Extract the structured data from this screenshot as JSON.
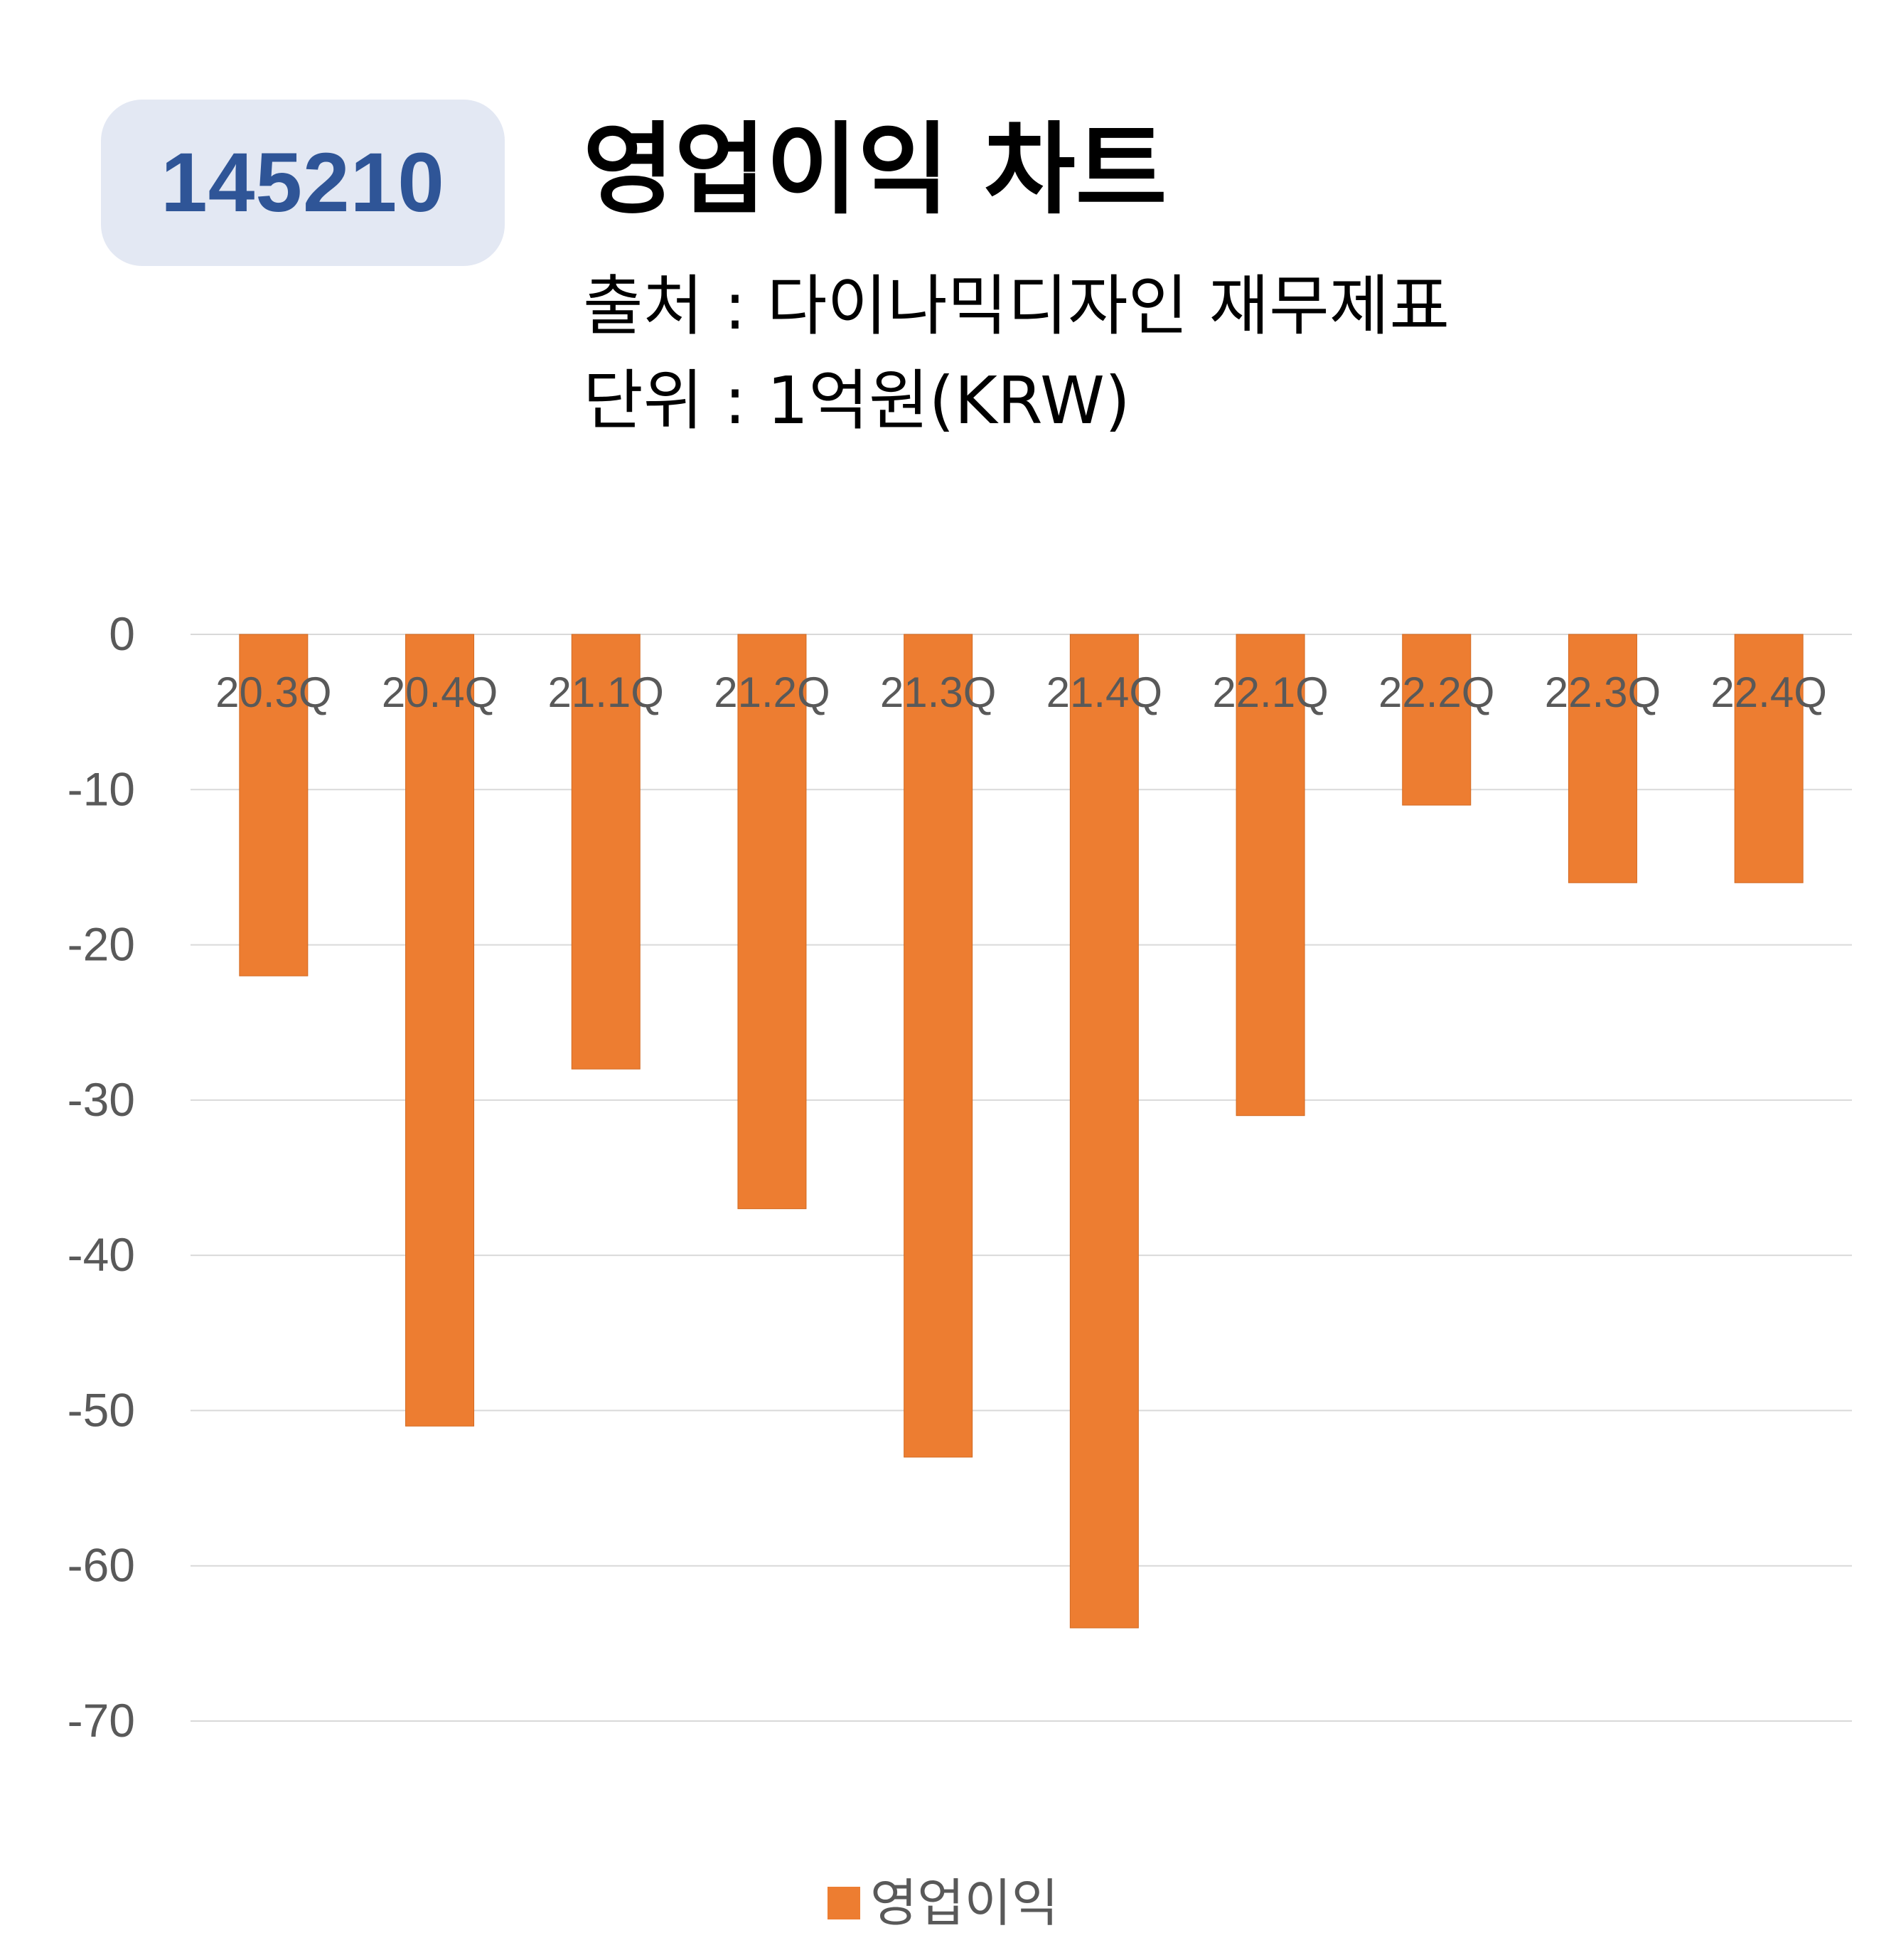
{
  "badge": {
    "code": "145210"
  },
  "header": {
    "title": "영업이익 차트",
    "source": "출처 : 다이나믹디자인 재무제표",
    "unit": "단위 : 1억원(KRW)"
  },
  "chart_data": {
    "type": "bar",
    "categories": [
      "20.3Q",
      "20.4Q",
      "21.1Q",
      "21.2Q",
      "21.3Q",
      "21.4Q",
      "22.1Q",
      "22.2Q",
      "22.3Q",
      "22.4Q"
    ],
    "series": [
      {
        "name": "영업이익",
        "values": [
          -22,
          -51,
          -28,
          -37,
          -53,
          -64,
          -31,
          -11,
          -16,
          -16
        ],
        "color": "#ED7D31"
      }
    ],
    "yticks": [
      "0",
      "-10",
      "-20",
      "-30",
      "-40",
      "-50",
      "-60",
      "-70"
    ],
    "ylim": [
      -70,
      0
    ],
    "grid": true,
    "legend_position": "bottom"
  },
  "legend": {
    "label": "영업이익"
  }
}
